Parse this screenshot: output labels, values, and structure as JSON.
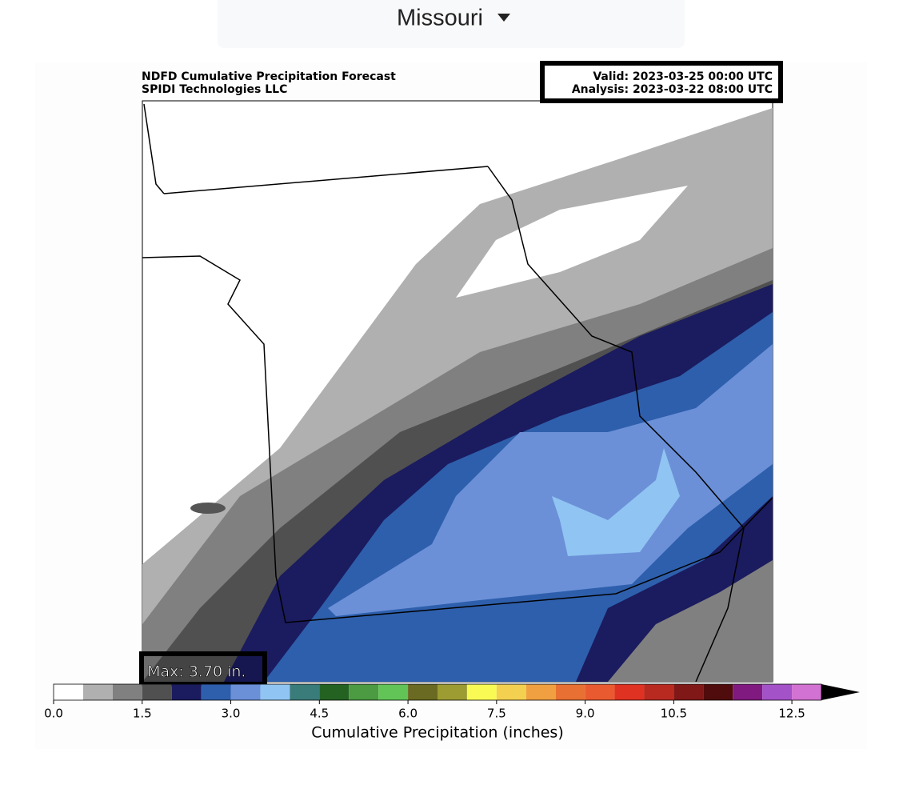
{
  "header": {
    "region": "Missouri"
  },
  "map": {
    "title": "NDFD Cumulative Precipitation Forecast",
    "subtitle": "SPIDI Technologies LLC",
    "valid": "Valid: 2023-03-25 00:00 UTC",
    "analysis": "Analysis: 2023-03-22 08:00 UTC",
    "max": "Max: 3.70 in."
  },
  "colorbar": {
    "label": "Cumulative Precipitation (inches)",
    "bounds": [
      0,
      0.5,
      1,
      1.5,
      2,
      2.5,
      3,
      3.5,
      4,
      4.5,
      5,
      5.5,
      6,
      6.5,
      7,
      7.5,
      8,
      8.5,
      9,
      9.5,
      10,
      10.5,
      11,
      11.5,
      12,
      12.5,
      13
    ],
    "colors": [
      "#ffffff",
      "#b0b0b0",
      "#808080",
      "#505050",
      "#1b1b5f",
      "#2e5fac",
      "#6b90d8",
      "#90c4f2",
      "#3a7c7a",
      "#246222",
      "#4c9a42",
      "#62c456",
      "#6a6a22",
      "#9c9c32",
      "#fafa55",
      "#f4d050",
      "#f0a040",
      "#e87032",
      "#ea5a30",
      "#e03222",
      "#b82a20",
      "#801818",
      "#500c0c",
      "#801a80",
      "#a452c8",
      "#d272d2"
    ],
    "extend_color": "#000000",
    "ticks": [
      {
        "value": 0,
        "label": "0.0"
      },
      {
        "value": 1.5,
        "label": "1.5"
      },
      {
        "value": 3,
        "label": "3.0"
      },
      {
        "value": 4.5,
        "label": "4.5"
      },
      {
        "value": 6,
        "label": "6.0"
      },
      {
        "value": 7.5,
        "label": "7.5"
      },
      {
        "value": 9,
        "label": "9.0"
      },
      {
        "value": 10.5,
        "label": "10.5"
      },
      {
        "value": 12.5,
        "label": "12.5"
      }
    ]
  }
}
